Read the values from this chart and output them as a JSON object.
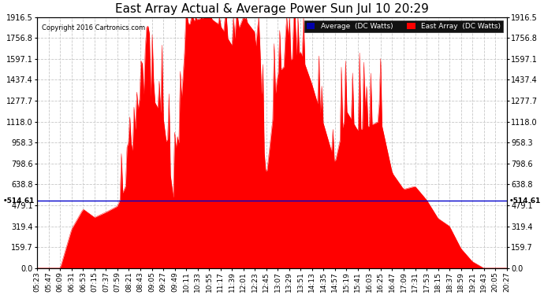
{
  "title": "East Array Actual & Average Power Sun Jul 10 20:29",
  "copyright": "Copyright 2016 Cartronics.com",
  "y_max": 1916.5,
  "y_ticks": [
    0.0,
    159.7,
    319.4,
    479.1,
    638.8,
    798.6,
    958.3,
    1118.0,
    1277.7,
    1437.4,
    1597.1,
    1756.8,
    1916.5
  ],
  "average_line_value": 514.61,
  "background_color": "#ffffff",
  "grid_color": "#c8c8c8",
  "fill_color": "#ff0000",
  "average_line_color": "#0000cc",
  "legend_avg_bg": "#0000aa",
  "legend_east_bg": "#ff0000",
  "title_fontsize": 11,
  "tick_fontsize": 7,
  "x_labels": [
    "05:23",
    "05:47",
    "06:09",
    "06:31",
    "06:53",
    "07:15",
    "07:37",
    "07:59",
    "08:21",
    "08:43",
    "09:05",
    "09:27",
    "09:49",
    "10:11",
    "10:33",
    "10:55",
    "11:17",
    "11:39",
    "12:01",
    "12:23",
    "12:45",
    "13:07",
    "13:29",
    "13:51",
    "14:13",
    "14:35",
    "14:57",
    "15:19",
    "15:41",
    "16:03",
    "16:25",
    "16:47",
    "17:09",
    "17:31",
    "17:53",
    "18:15",
    "18:37",
    "18:59",
    "19:21",
    "19:43",
    "20:05",
    "20:27"
  ]
}
